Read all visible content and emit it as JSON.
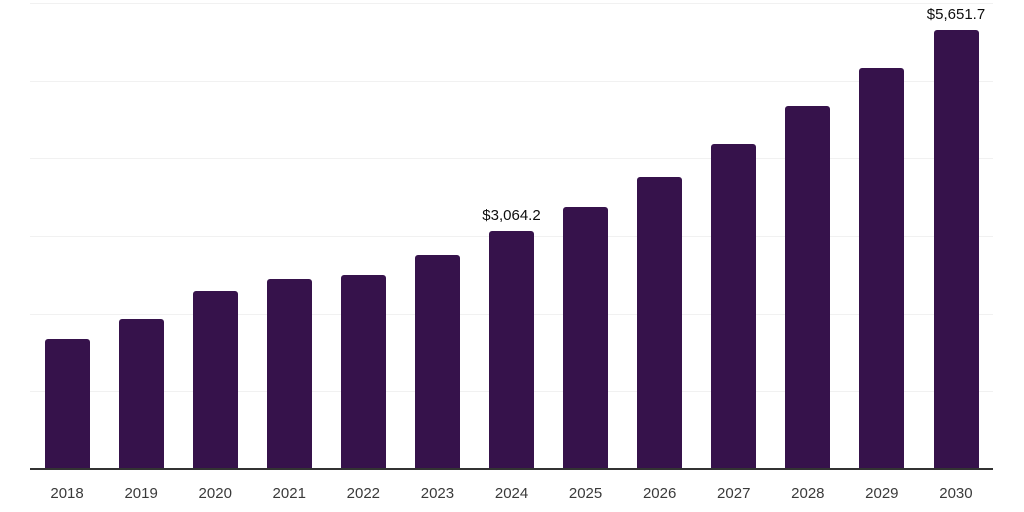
{
  "chart_data": {
    "type": "bar",
    "title": "",
    "xlabel": "",
    "ylabel": "",
    "categories": [
      "2018",
      "2019",
      "2020",
      "2021",
      "2022",
      "2023",
      "2024",
      "2025",
      "2026",
      "2027",
      "2028",
      "2029",
      "2030"
    ],
    "values": [
      1675,
      1930,
      2290,
      2445,
      2500,
      2755,
      3064.2,
      3380,
      3755,
      4185,
      4675,
      5165,
      5651.7
    ],
    "data_labels": [
      "",
      "",
      "",
      "",
      "",
      "",
      "$3,064.2",
      "",
      "",
      "",
      "",
      "",
      "$5,651.7"
    ],
    "ylim": [
      0,
      6000
    ],
    "gridline_step": 1000,
    "grid": true,
    "legend": "none",
    "y_axis_tick_labels_visible": false,
    "colors": {
      "bar": "#36124B",
      "gridline": "#f1f1f1",
      "axis_line": "#333333",
      "tick_label": "#3a3a3a",
      "data_label": "#0d0d0d",
      "background": "#ffffff"
    }
  }
}
